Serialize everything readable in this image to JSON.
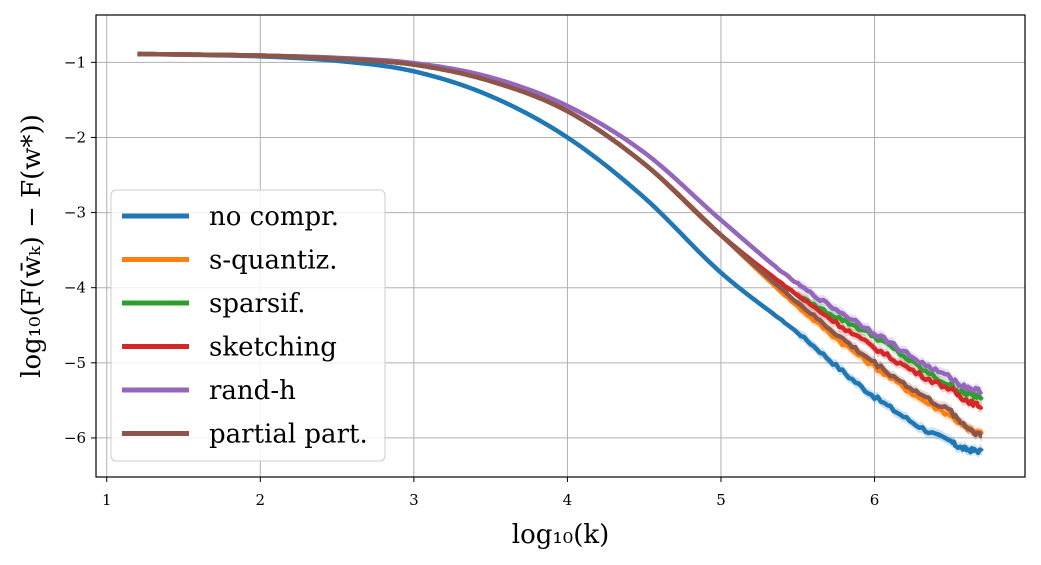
{
  "chart_data": {
    "type": "line",
    "xlabel": "log₁₀(k)",
    "ylabel": "log₁₀(F(w̄ₖ) − F(w*))",
    "xlim": [
      0.93,
      6.98
    ],
    "ylim": [
      -6.52,
      -0.37
    ],
    "xticks": [
      1,
      2,
      3,
      4,
      5,
      6
    ],
    "yticks": [
      -1,
      -2,
      -3,
      -4,
      -5,
      -6
    ],
    "xtick_labels": [
      "1",
      "2",
      "3",
      "4",
      "5",
      "6"
    ],
    "ytick_labels": [
      "−1",
      "−2",
      "−3",
      "−4",
      "−5",
      "−6"
    ],
    "grid": true,
    "legend_position": "center-left",
    "colors": {
      "no_compr": "#1f77b4",
      "s_quantiz": "#ff7f0e",
      "sparsif": "#2ca02c",
      "sketching": "#d62728",
      "rand_h": "#9467bd",
      "partial_part": "#8c564b"
    },
    "series": [
      {
        "name": "no compr.",
        "color": "#1f77b4",
        "x": [
          1.2,
          2.0,
          2.5,
          3.0,
          3.5,
          4.0,
          4.5,
          5.0,
          5.5,
          6.0,
          6.5,
          6.7
        ],
        "y": [
          -0.89,
          -0.92,
          -0.98,
          -1.12,
          -1.45,
          -2.0,
          -2.8,
          -3.8,
          -4.6,
          -5.45,
          -6.05,
          -6.18
        ]
      },
      {
        "name": "s-quantiz.",
        "color": "#ff7f0e",
        "x": [
          1.2,
          2.0,
          2.5,
          3.0,
          3.5,
          4.0,
          4.5,
          5.0,
          5.5,
          6.0,
          6.5,
          6.7
        ],
        "y": [
          -0.89,
          -0.91,
          -0.95,
          -1.03,
          -1.25,
          -1.65,
          -2.35,
          -3.3,
          -4.25,
          -5.05,
          -5.7,
          -5.95
        ]
      },
      {
        "name": "sparsif.",
        "color": "#2ca02c",
        "x": [
          1.2,
          2.0,
          2.5,
          3.0,
          3.5,
          4.0,
          4.5,
          5.0,
          5.5,
          6.0,
          6.5,
          6.7
        ],
        "y": [
          -0.89,
          -0.91,
          -0.95,
          -1.03,
          -1.25,
          -1.65,
          -2.35,
          -3.3,
          -4.1,
          -4.65,
          -5.3,
          -5.45
        ]
      },
      {
        "name": "sketching",
        "color": "#d62728",
        "x": [
          1.2,
          2.0,
          2.5,
          3.0,
          3.5,
          4.0,
          4.5,
          5.0,
          5.5,
          6.0,
          6.5,
          6.7
        ],
        "y": [
          -0.89,
          -0.91,
          -0.95,
          -1.03,
          -1.25,
          -1.65,
          -2.35,
          -3.3,
          -4.1,
          -4.8,
          -5.35,
          -5.58
        ]
      },
      {
        "name": "rand-h",
        "color": "#9467bd",
        "x": [
          1.2,
          2.0,
          2.5,
          3.0,
          3.5,
          4.0,
          4.5,
          5.0,
          5.5,
          6.0,
          6.5,
          6.7
        ],
        "y": [
          -0.89,
          -0.91,
          -0.94,
          -1.01,
          -1.2,
          -1.58,
          -2.2,
          -3.1,
          -3.95,
          -4.6,
          -5.2,
          -5.38
        ]
      },
      {
        "name": "partial part.",
        "color": "#8c564b",
        "x": [
          1.2,
          2.0,
          2.5,
          3.0,
          3.5,
          4.0,
          4.5,
          5.0,
          5.5,
          6.0,
          6.5,
          6.7
        ],
        "y": [
          -0.89,
          -0.91,
          -0.95,
          -1.03,
          -1.25,
          -1.65,
          -2.35,
          -3.3,
          -4.2,
          -5.0,
          -5.65,
          -5.97
        ]
      }
    ],
    "legend": [
      {
        "label": "no compr.",
        "color": "#1f77b4"
      },
      {
        "label": "s-quantiz.",
        "color": "#ff7f0e"
      },
      {
        "label": "sparsif.",
        "color": "#2ca02c"
      },
      {
        "label": "sketching",
        "color": "#d62728"
      },
      {
        "label": "rand-h",
        "color": "#9467bd"
      },
      {
        "label": "partial part.",
        "color": "#8c564b"
      }
    ]
  }
}
